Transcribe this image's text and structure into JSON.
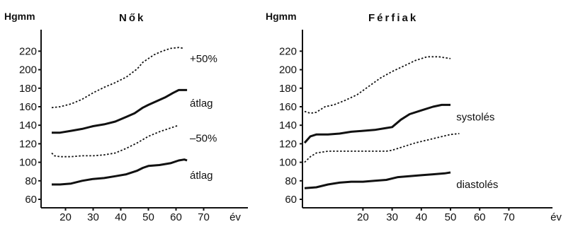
{
  "chart_data": [
    {
      "type": "line",
      "title": "Nők",
      "ylabel": "Hgmm",
      "xlabel": "év",
      "xlim": [
        15,
        75
      ],
      "ylim": [
        55,
        225
      ],
      "xticks": [
        20,
        30,
        40,
        50,
        60,
        70
      ],
      "yticks": [
        60,
        80,
        100,
        120,
        140,
        160,
        180,
        200,
        220
      ],
      "series": [
        {
          "name": "+50%",
          "style": "dotted",
          "x": [
            15,
            18,
            22,
            26,
            30,
            34,
            38,
            42,
            46,
            48,
            50,
            52,
            55,
            58,
            61,
            63
          ],
          "y": [
            159,
            160,
            163,
            168,
            175,
            181,
            186,
            192,
            201,
            208,
            212,
            216,
            220,
            223,
            224,
            223
          ]
        },
        {
          "name": "átlag",
          "style": "solid",
          "x": [
            15,
            18,
            22,
            26,
            30,
            34,
            38,
            42,
            45,
            48,
            50,
            53,
            56,
            59,
            61,
            64
          ],
          "y": [
            132,
            132,
            134,
            136,
            139,
            141,
            144,
            149,
            153,
            159,
            162,
            166,
            170,
            175,
            178,
            178
          ]
        },
        {
          "name": "–50%",
          "style": "dotted",
          "x": [
            15,
            16,
            18,
            22,
            26,
            30,
            34,
            38,
            42,
            46,
            50,
            54,
            58,
            61
          ],
          "y": [
            110,
            107,
            106,
            106,
            107,
            107,
            108,
            110,
            115,
            121,
            128,
            133,
            137,
            140
          ]
        },
        {
          "name": "átlag",
          "style": "solid",
          "x": [
            15,
            18,
            22,
            26,
            30,
            34,
            38,
            42,
            46,
            48,
            50,
            54,
            58,
            61,
            63,
            64
          ],
          "y": [
            76,
            76,
            77,
            80,
            82,
            83,
            85,
            87,
            91,
            94,
            96,
            97,
            99,
            102,
            103,
            102
          ]
        }
      ]
    },
    {
      "type": "line",
      "title": "Férfiak",
      "ylabel": "Hgmm",
      "xlabel": "év",
      "xlim": [
        0,
        75
      ],
      "ylim": [
        55,
        225
      ],
      "xticks": [
        20,
        30,
        40,
        50,
        60,
        70
      ],
      "yticks": [
        60,
        80,
        100,
        120,
        140,
        160,
        180,
        200,
        220
      ],
      "series": [
        {
          "name": "",
          "style": "dotted",
          "x": [
            0,
            2,
            4,
            7,
            10,
            14,
            18,
            22,
            26,
            30,
            34,
            38,
            42,
            46,
            50
          ],
          "y": [
            155,
            153,
            154,
            160,
            162,
            167,
            173,
            182,
            191,
            198,
            204,
            210,
            214,
            214,
            212
          ]
        },
        {
          "name": "systolés",
          "style": "solid",
          "x": [
            0,
            2,
            4,
            8,
            12,
            16,
            20,
            24,
            28,
            30,
            33,
            36,
            40,
            44,
            47,
            50
          ],
          "y": [
            121,
            128,
            130,
            130,
            131,
            133,
            134,
            135,
            137,
            138,
            146,
            152,
            156,
            160,
            162,
            162
          ]
        },
        {
          "name": "",
          "style": "dotted",
          "x": [
            0,
            2,
            4,
            8,
            12,
            16,
            20,
            24,
            28,
            30,
            34,
            38,
            42,
            46,
            50,
            53
          ],
          "y": [
            100,
            106,
            110,
            112,
            112,
            112,
            112,
            112,
            112,
            113,
            117,
            121,
            124,
            127,
            130,
            131
          ]
        },
        {
          "name": "diastolés",
          "style": "solid",
          "x": [
            0,
            4,
            8,
            12,
            16,
            20,
            24,
            28,
            32,
            36,
            40,
            44,
            48,
            50
          ],
          "y": [
            72,
            73,
            76,
            78,
            79,
            79,
            80,
            81,
            84,
            85,
            86,
            87,
            88,
            89
          ]
        }
      ]
    }
  ],
  "annotations": [
    {
      "chart": 0,
      "text": "+50%",
      "x": 65,
      "y": 212
    },
    {
      "chart": 0,
      "text": "átlag",
      "x": 65,
      "y": 164
    },
    {
      "chart": 0,
      "text": "–50%",
      "x": 65,
      "y": 126
    },
    {
      "chart": 0,
      "text": "átlag",
      "x": 65,
      "y": 86
    },
    {
      "chart": 1,
      "text": "systolés",
      "x": 52,
      "y": 149
    },
    {
      "chart": 1,
      "text": "diastolés",
      "x": 52,
      "y": 76
    }
  ]
}
